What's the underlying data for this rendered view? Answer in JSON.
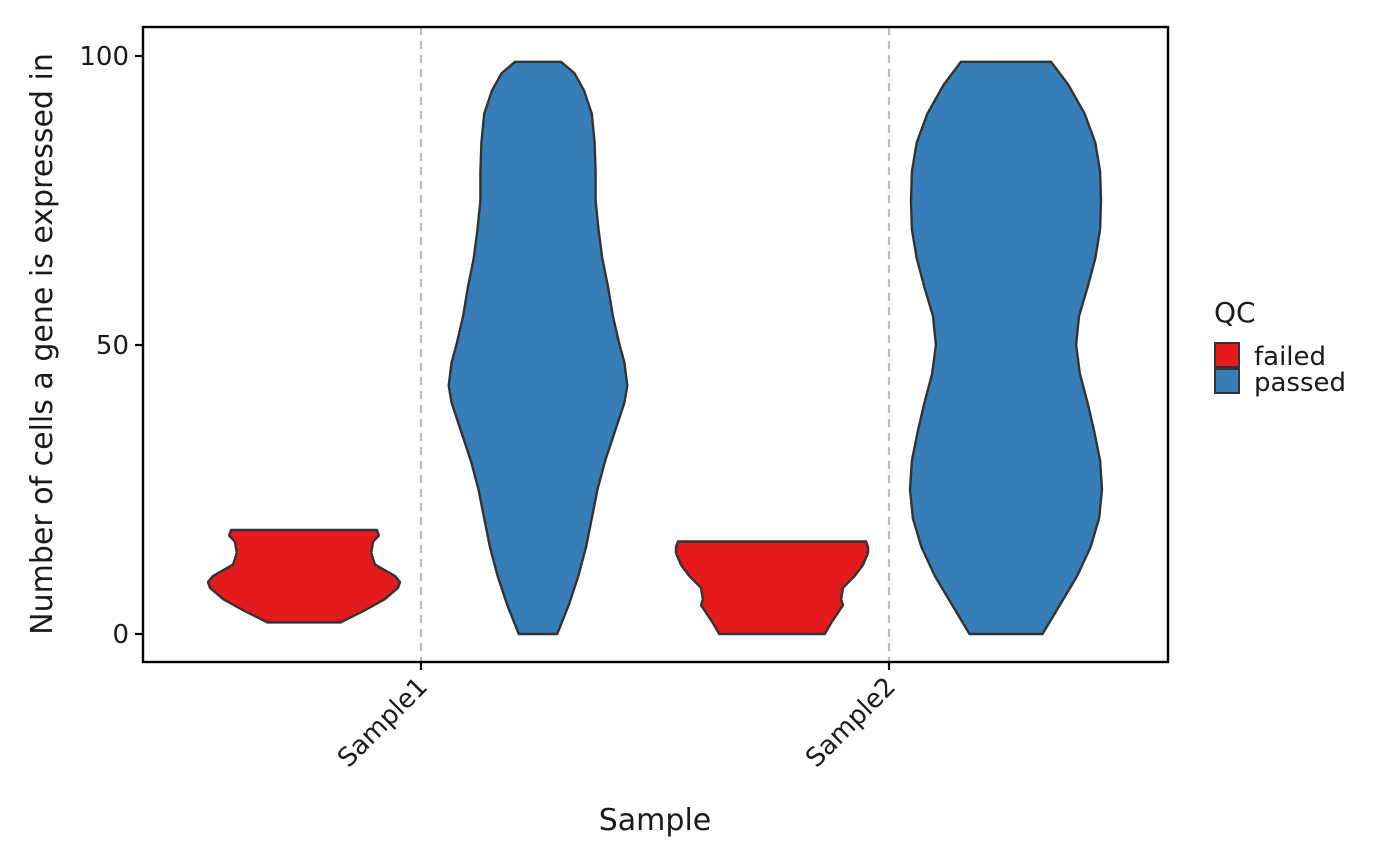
{
  "chart_data": {
    "type": "violin",
    "xlabel": "Sample",
    "ylabel": "Number of cells a gene is expressed in",
    "categories": [
      "Sample1",
      "Sample2"
    ],
    "ylim": [
      -5,
      104
    ],
    "yticks": [
      0,
      50,
      100
    ],
    "grid": {
      "vertical_dashed_at_categories": true,
      "horizontal": false
    },
    "legend": {
      "title": "QC",
      "position": "right",
      "entries": [
        {
          "label": "failed",
          "color": "#e41a1c"
        },
        {
          "label": "passed",
          "color": "#377eb8"
        }
      ]
    },
    "series": [
      {
        "name": "failed",
        "color": "#e41a1c",
        "violins": [
          {
            "category": "Sample1",
            "min": 2,
            "max": 18,
            "profile": [
              [
                2,
                0.38
              ],
              [
                4,
                0.62
              ],
              [
                6,
                0.84
              ],
              [
                8,
                0.98
              ],
              [
                9,
                1.0
              ],
              [
                10,
                0.95
              ],
              [
                12,
                0.74
              ],
              [
                14,
                0.7
              ],
              [
                16,
                0.72
              ],
              [
                17,
                0.78
              ],
              [
                18,
                0.76
              ]
            ]
          },
          {
            "category": "Sample2",
            "min": 0,
            "max": 16,
            "profile": [
              [
                0,
                0.55
              ],
              [
                2,
                0.62
              ],
              [
                4,
                0.7
              ],
              [
                5,
                0.74
              ],
              [
                6,
                0.72
              ],
              [
                8,
                0.74
              ],
              [
                10,
                0.86
              ],
              [
                12,
                0.95
              ],
              [
                14,
                1.0
              ],
              [
                15,
                1.0
              ],
              [
                16,
                0.98
              ]
            ]
          }
        ]
      },
      {
        "name": "passed",
        "color": "#377eb8",
        "violins": [
          {
            "category": "Sample1",
            "min": 0,
            "max": 99,
            "profile": [
              [
                0,
                0.2
              ],
              [
                5,
                0.32
              ],
              [
                10,
                0.42
              ],
              [
                15,
                0.5
              ],
              [
                20,
                0.56
              ],
              [
                25,
                0.62
              ],
              [
                30,
                0.7
              ],
              [
                35,
                0.8
              ],
              [
                40,
                0.9
              ],
              [
                43,
                0.93
              ],
              [
                47,
                0.9
              ],
              [
                50,
                0.85
              ],
              [
                55,
                0.78
              ],
              [
                60,
                0.73
              ],
              [
                65,
                0.67
              ],
              [
                70,
                0.63
              ],
              [
                75,
                0.6
              ],
              [
                80,
                0.6
              ],
              [
                85,
                0.59
              ],
              [
                90,
                0.56
              ],
              [
                94,
                0.48
              ],
              [
                97,
                0.38
              ],
              [
                99,
                0.24
              ]
            ]
          },
          {
            "category": "Sample2",
            "min": 0,
            "max": 99,
            "profile": [
              [
                0,
                0.38
              ],
              [
                5,
                0.56
              ],
              [
                10,
                0.74
              ],
              [
                15,
                0.88
              ],
              [
                20,
                0.97
              ],
              [
                25,
                1.0
              ],
              [
                30,
                0.98
              ],
              [
                35,
                0.92
              ],
              [
                40,
                0.85
              ],
              [
                45,
                0.77
              ],
              [
                50,
                0.73
              ],
              [
                55,
                0.76
              ],
              [
                60,
                0.85
              ],
              [
                65,
                0.93
              ],
              [
                70,
                0.98
              ],
              [
                75,
                0.99
              ],
              [
                80,
                0.98
              ],
              [
                85,
                0.93
              ],
              [
                90,
                0.82
              ],
              [
                95,
                0.65
              ],
              [
                99,
                0.47
              ]
            ]
          }
        ]
      }
    ]
  }
}
